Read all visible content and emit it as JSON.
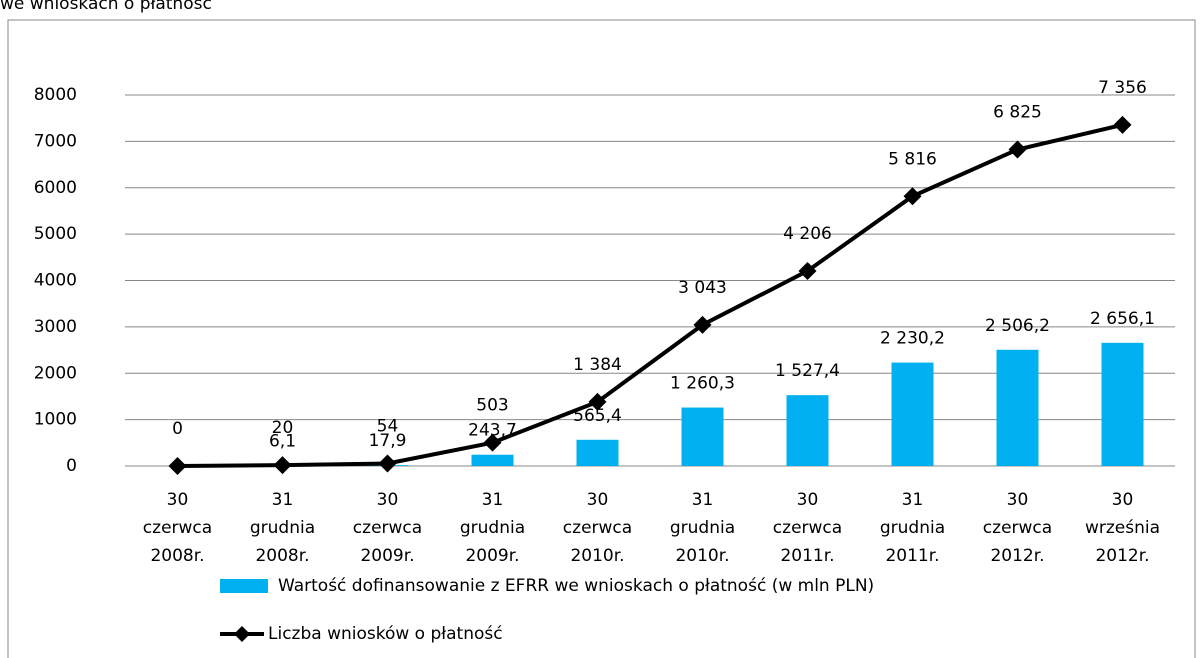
{
  "caption": "we wnioskach o płatność",
  "chart_data": {
    "type": "combo",
    "categories": [
      [
        "30",
        "czerwca",
        "2008r."
      ],
      [
        "31",
        "grudnia",
        "2008r."
      ],
      [
        "30",
        "czerwca",
        "2009r."
      ],
      [
        "31",
        "grudnia",
        "2009r."
      ],
      [
        "30",
        "czerwca",
        "2010r."
      ],
      [
        "31",
        "grudnia",
        "2010r."
      ],
      [
        "30",
        "czerwca",
        "2011r."
      ],
      [
        "31",
        "grudnia",
        "2011r."
      ],
      [
        "30",
        "czerwca",
        "2012r."
      ],
      [
        "30",
        "września",
        "2012r."
      ]
    ],
    "series": [
      {
        "name": "Wartość dofinansowanie z EFRR we wnioskach o płatność  (w mln PLN)",
        "type": "bar",
        "color": "#00b0f0",
        "values": [
          null,
          6.1,
          17.9,
          243.7,
          565.4,
          1260.3,
          1527.4,
          2230.2,
          2506.2,
          2656.1
        ],
        "value_labels": [
          null,
          "6,1",
          "17,9",
          "243,7",
          "565,4",
          "1 260,3",
          "1 527,4",
          "2 230,2",
          "2 506,2",
          "2 656,1"
        ]
      },
      {
        "name": "Liczba wniosków o płatność",
        "type": "line",
        "color": "#000000",
        "values": [
          0,
          20,
          54,
          503,
          1384,
          3043,
          4206,
          5816,
          6825,
          7356
        ],
        "value_labels": [
          "0",
          "20",
          "54",
          "503",
          "1 384",
          "3 043",
          "4 206",
          "5 816",
          "6 825",
          "7 356"
        ]
      }
    ],
    "ylim": [
      0,
      8000
    ],
    "yticks": [
      0,
      1000,
      2000,
      3000,
      4000,
      5000,
      6000,
      7000,
      8000
    ],
    "grid": true,
    "legend": "bottom"
  }
}
